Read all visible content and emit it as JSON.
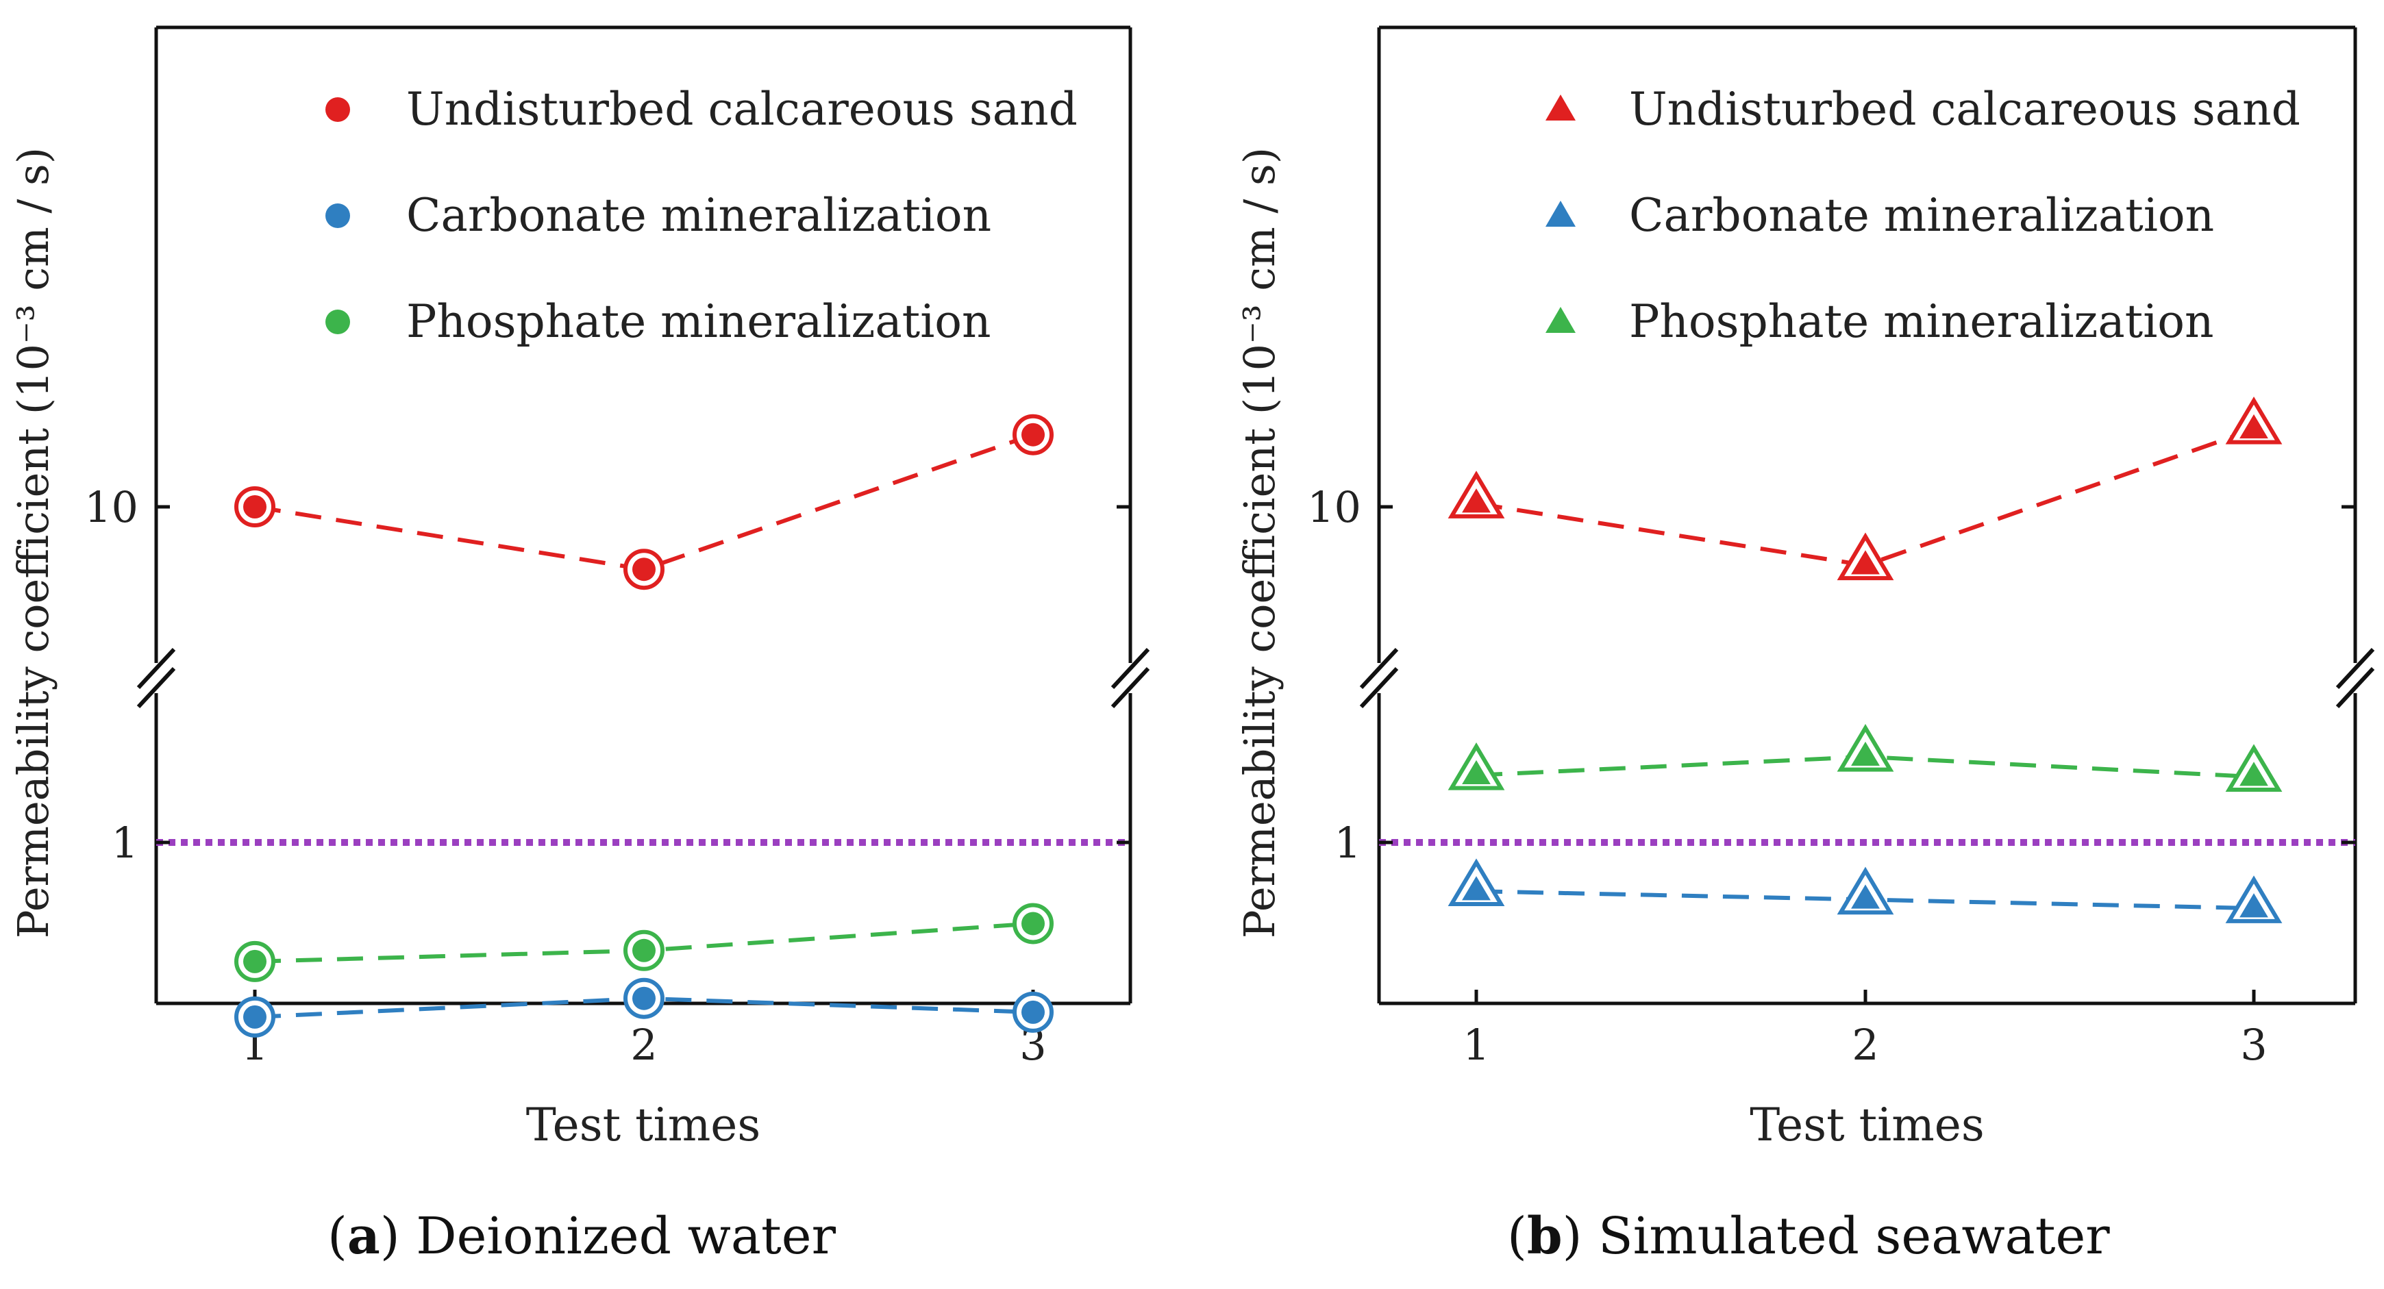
{
  "chart_data": [
    {
      "type": "line",
      "id": "a",
      "caption_letter": "a",
      "caption_text": "Deionized water",
      "xlabel": "Test times",
      "ylabel": "Permeability coefficient (10⁻³ cm / s)",
      "x": [
        1,
        2,
        3
      ],
      "x_ticks": [
        "1",
        "2",
        "3"
      ],
      "y_ticks": [
        "1",
        "10"
      ],
      "y_scale": "log, broken axis",
      "reference_line": 1,
      "marker": "circle",
      "legend_position": "top-left",
      "series": [
        {
          "name": "Undisturbed calcareous sand",
          "color": "#e02020",
          "values": [
            10,
            8.3,
            12.4
          ]
        },
        {
          "name": "Carbonate mineralization",
          "color": "#2f7fc1",
          "values": [
            0.45,
            0.49,
            0.46
          ]
        },
        {
          "name": "Phosphate mineralization",
          "color": "#3cb44b",
          "values": [
            0.58,
            0.61,
            0.69
          ]
        }
      ]
    },
    {
      "type": "line",
      "id": "b",
      "caption_letter": "b",
      "caption_text": "Simulated seawater",
      "xlabel": "Test times",
      "ylabel": "Permeability coefficient (10⁻³ cm / s)",
      "x": [
        1,
        2,
        3
      ],
      "x_ticks": [
        "1",
        "2",
        "3"
      ],
      "y_ticks": [
        "1",
        "10"
      ],
      "y_scale": "log, broken axis",
      "reference_line": 1,
      "marker": "triangle",
      "legend_position": "top-left",
      "series": [
        {
          "name": "Undisturbed calcareous sand",
          "color": "#e02020",
          "values": [
            10.1,
            8.4,
            12.6
          ]
        },
        {
          "name": "Carbonate mineralization",
          "color": "#2f7fc1",
          "values": [
            0.8,
            0.77,
            0.74
          ]
        },
        {
          "name": "Phosphate mineralization",
          "color": "#3cb44b",
          "values": [
            1.36,
            1.48,
            1.35
          ]
        }
      ]
    }
  ]
}
